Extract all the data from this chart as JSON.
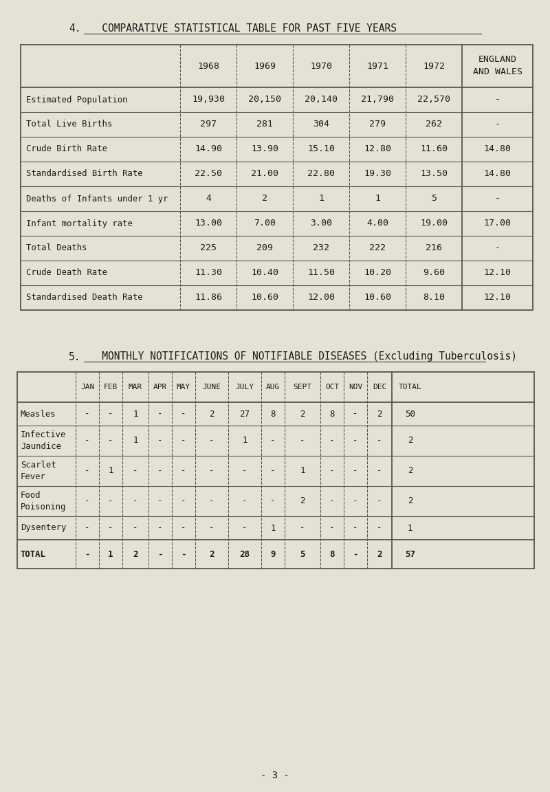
{
  "bg_color": "#e5e1d5",
  "title4_num": "4.",
  "title4_text": "   COMPARATIVE STATISTICAL TABLE FOR PAST FIVE YEARS",
  "title5_num": "5.",
  "title5_text": "   MONTHLY NOTIFICATIONS OF NOTIFIABLE DISEASES (Excluding Tuberculosis)",
  "page_number": "- 3 -",
  "table1": {
    "col_headers": [
      "",
      "1968",
      "1969",
      "1970",
      "1971",
      "1972",
      "ENGLAND\nAND WALES"
    ],
    "rows": [
      [
        "Estimated Population",
        "19,930",
        "20,150",
        "20,140",
        "21,790",
        "22,570",
        "-"
      ],
      [
        "Total Live Births",
        "297",
        "281",
        "304",
        "279",
        "262",
        "-"
      ],
      [
        "Crude Birth Rate",
        "14.90",
        "13.90",
        "15.10",
        "12.80",
        "11.60",
        "14.80"
      ],
      [
        "Standardised Birth Rate",
        "22.50",
        "21.00",
        "22.80",
        "19.30",
        "13.50",
        "14.80"
      ],
      [
        "Deaths of Infants under 1 yr",
        "4",
        "2",
        "1",
        "1",
        "5",
        "-"
      ],
      [
        "Infant mortality rate",
        "13.00",
        "7.00",
        "3.00",
        "4.00",
        "19.00",
        "17.00"
      ],
      [
        "Total Deaths",
        "225",
        "209",
        "232",
        "222",
        "216",
        "-"
      ],
      [
        "Crude Death Rate",
        "11.30",
        "10.40",
        "11.50",
        "10.20",
        "9.60",
        "12.10"
      ],
      [
        "Standardised Death Rate",
        "11.86",
        "10.60",
        "12.00",
        "10.60",
        "8.10",
        "12.10"
      ]
    ]
  },
  "table2": {
    "col_headers": [
      "",
      "JAN",
      "FEB",
      "MAR",
      "APR",
      "MAY",
      "JUNE",
      "JULY",
      "AUG",
      "SEPT",
      "OCT",
      "NOV",
      "DEC",
      "TOTAL"
    ],
    "rows": [
      [
        "Measles",
        "-",
        "-",
        "1",
        "-",
        "-",
        "2",
        "27",
        "8",
        "2",
        "8",
        "-",
        "2",
        "50"
      ],
      [
        "Infective\nJaundice",
        "-",
        "-",
        "1",
        "-",
        "-",
        "-",
        "1",
        "-",
        "-",
        "-",
        "-",
        "-",
        "2"
      ],
      [
        "Scarlet\nFever",
        "-",
        "1",
        "-",
        "-",
        "-",
        "-",
        "-",
        "-",
        "1",
        "-",
        "-",
        "-",
        "2"
      ],
      [
        "Food\nPoisoning",
        "-",
        "-",
        "-",
        "-",
        "-",
        "-",
        "-",
        "-",
        "2",
        "-",
        "-",
        "-",
        "2"
      ],
      [
        "Dysentery",
        "-",
        "-",
        "-",
        "-",
        "-",
        "-",
        "-",
        "1",
        "-",
        "-",
        "-",
        "-",
        "1"
      ],
      [
        "TOTAL",
        "-",
        "1",
        "2",
        "-",
        "-",
        "2",
        "28",
        "9",
        "5",
        "8",
        "-",
        "2",
        "57"
      ]
    ]
  }
}
